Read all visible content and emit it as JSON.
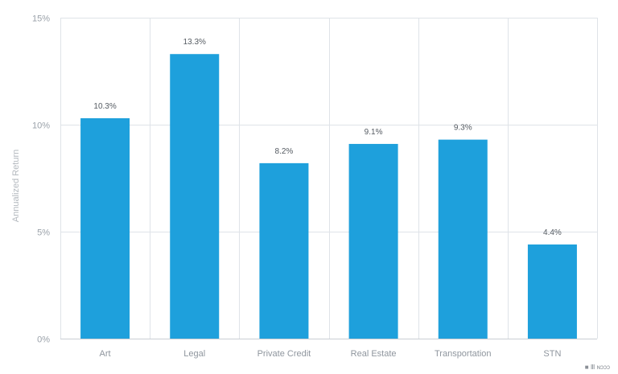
{
  "chart_data": {
    "type": "bar",
    "categories": [
      "Art",
      "Legal",
      "Private Credit",
      "Real Estate",
      "Transportation",
      "STN"
    ],
    "values": [
      10.3,
      13.3,
      8.2,
      9.1,
      9.3,
      4.4
    ],
    "data_labels": [
      "10.3%",
      "13.3%",
      "8.2%",
      "9.1%",
      "9.3%",
      "4.4%"
    ],
    "ylabel": "Annualized Return",
    "xlabel": "",
    "ylim": [
      0,
      15
    ],
    "yticks": [
      0,
      5,
      10,
      15
    ],
    "ytick_labels": [
      "0%",
      "5%",
      "10%",
      "15%"
    ],
    "grid": true,
    "bar_color": "#1ea0dc"
  },
  "watermark": "■ Ⅲ ɴɔɔɔ"
}
